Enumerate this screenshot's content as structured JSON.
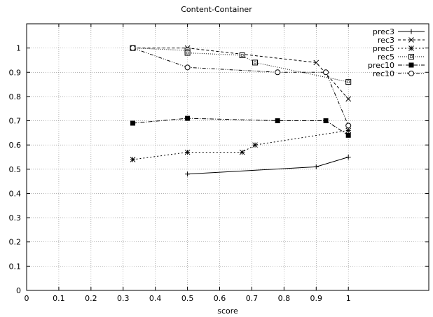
{
  "chart_data": {
    "type": "line",
    "title": "Content-Container",
    "xlabel": "score",
    "ylabel": "",
    "xlim": [
      0,
      1.25
    ],
    "ylim": [
      0,
      1.1
    ],
    "xticks": [
      0,
      0.1,
      0.2,
      0.3,
      0.4,
      0.5,
      0.6,
      0.7,
      0.8,
      0.9,
      1
    ],
    "xtick_labels": [
      "0",
      "0.1",
      "0.2",
      "0.3",
      "0.4",
      "0.5",
      "0.6",
      "0.7",
      "0.8",
      "0.9",
      "1"
    ],
    "yticks": [
      0,
      0.1,
      0.2,
      0.3,
      0.4,
      0.5,
      0.6,
      0.7,
      0.8,
      0.9,
      1
    ],
    "ytick_labels": [
      "0",
      "0.1",
      "0.2",
      "0.3",
      "0.4",
      "0.5",
      "0.6",
      "0.7",
      "0.8",
      "0.9",
      "1"
    ],
    "grid": true,
    "legend_position": "top-right",
    "series": [
      {
        "name": "prec3",
        "marker": "plus",
        "dash": "",
        "x": [
          0.5,
          0.9,
          1.0
        ],
        "y": [
          0.48,
          0.51,
          0.55
        ]
      },
      {
        "name": "rec3",
        "marker": "cross",
        "dash": "4,3",
        "x": [
          0.33,
          0.5,
          0.9,
          1.0
        ],
        "y": [
          1.0,
          1.0,
          0.94,
          0.79
        ]
      },
      {
        "name": "prec5",
        "marker": "star",
        "dash": "2,3",
        "x": [
          0.33,
          0.5,
          0.67,
          0.71,
          1.0
        ],
        "y": [
          0.54,
          0.57,
          0.57,
          0.6,
          0.66
        ]
      },
      {
        "name": "rec5",
        "marker": "square-open",
        "dash": "1,2",
        "x": [
          0.33,
          0.5,
          0.5,
          0.67,
          0.71,
          1.0
        ],
        "y": [
          1.0,
          0.99,
          0.98,
          0.97,
          0.94,
          0.86
        ]
      },
      {
        "name": "prec10",
        "marker": "square-filled",
        "dash": "6,2,1,2",
        "x": [
          0.33,
          0.5,
          0.78,
          0.93,
          1.0
        ],
        "y": [
          0.69,
          0.71,
          0.7,
          0.7,
          0.64
        ]
      },
      {
        "name": "rec10",
        "marker": "circle-open",
        "dash": "5,2,1,2,1,2",
        "x": [
          0.33,
          0.5,
          0.78,
          0.93,
          1.0
        ],
        "y": [
          1.0,
          0.92,
          0.9,
          0.9,
          0.68
        ]
      }
    ]
  }
}
